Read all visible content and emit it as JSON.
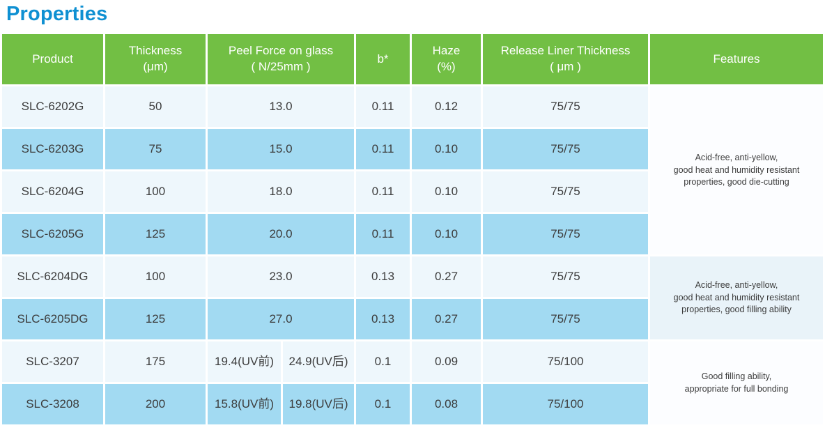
{
  "page": {
    "title": "Properties"
  },
  "colors": {
    "title_blue": "#0f90d2",
    "header_green": "#72bf44",
    "row_light": "#eef7fc",
    "row_blue": "#a2daf2",
    "features_light": "#fcfdff",
    "features_blue": "#e9f3f9",
    "text": "#3c3c3c",
    "header_text": "#ffffff"
  },
  "table": {
    "headers": {
      "product": "Product",
      "thickness": "Thickness\n(μm)",
      "peel_force": "Peel Force on glass\n( N/25mm )",
      "b_star": "b*",
      "haze": "Haze\n(%)",
      "release_liner": "Release Liner Thickness\n( μm )",
      "features": "Features"
    },
    "rows": [
      {
        "product": "SLC-6202G",
        "thickness": "50",
        "peel": "13.0",
        "b": "0.11",
        "haze": "0.12",
        "liner": "75/75"
      },
      {
        "product": "SLC-6203G",
        "thickness": "75",
        "peel": "15.0",
        "b": "0.11",
        "haze": "0.10",
        "liner": "75/75"
      },
      {
        "product": "SLC-6204G",
        "thickness": "100",
        "peel": "18.0",
        "b": "0.11",
        "haze": "0.10",
        "liner": "75/75"
      },
      {
        "product": "SLC-6205G",
        "thickness": "125",
        "peel": "20.0",
        "b": "0.11",
        "haze": "0.10",
        "liner": "75/75"
      },
      {
        "product": "SLC-6204DG",
        "thickness": "100",
        "peel": "23.0",
        "b": "0.13",
        "haze": "0.27",
        "liner": "75/75"
      },
      {
        "product": "SLC-6205DG",
        "thickness": "125",
        "peel": "27.0",
        "b": "0.13",
        "haze": "0.27",
        "liner": "75/75"
      },
      {
        "product": "SLC-3207",
        "thickness": "175",
        "peel_pre": "19.4(UV前)",
        "peel_post": "24.9(UV后)",
        "b": "0.1",
        "haze": "0.09",
        "liner": "75/100"
      },
      {
        "product": "SLC-3208",
        "thickness": "200",
        "peel_pre": "15.8(UV前)",
        "peel_post": "19.8(UV后)",
        "b": "0.1",
        "haze": "0.08",
        "liner": "75/100"
      }
    ],
    "feature_groups": [
      {
        "rows": "SLC-6202G to SLC-6205G",
        "text": "Acid-free, anti-yellow,\ngood heat and humidity resistant\nproperties, good die-cutting"
      },
      {
        "rows": "SLC-6204DG to SLC-6205DG",
        "text": "Acid-free, anti-yellow,\ngood heat and humidity resistant\nproperties, good filling ability"
      },
      {
        "rows": "SLC-3207 to SLC-3208",
        "text": "Good filling ability,\nappropriate for full bonding"
      }
    ]
  }
}
